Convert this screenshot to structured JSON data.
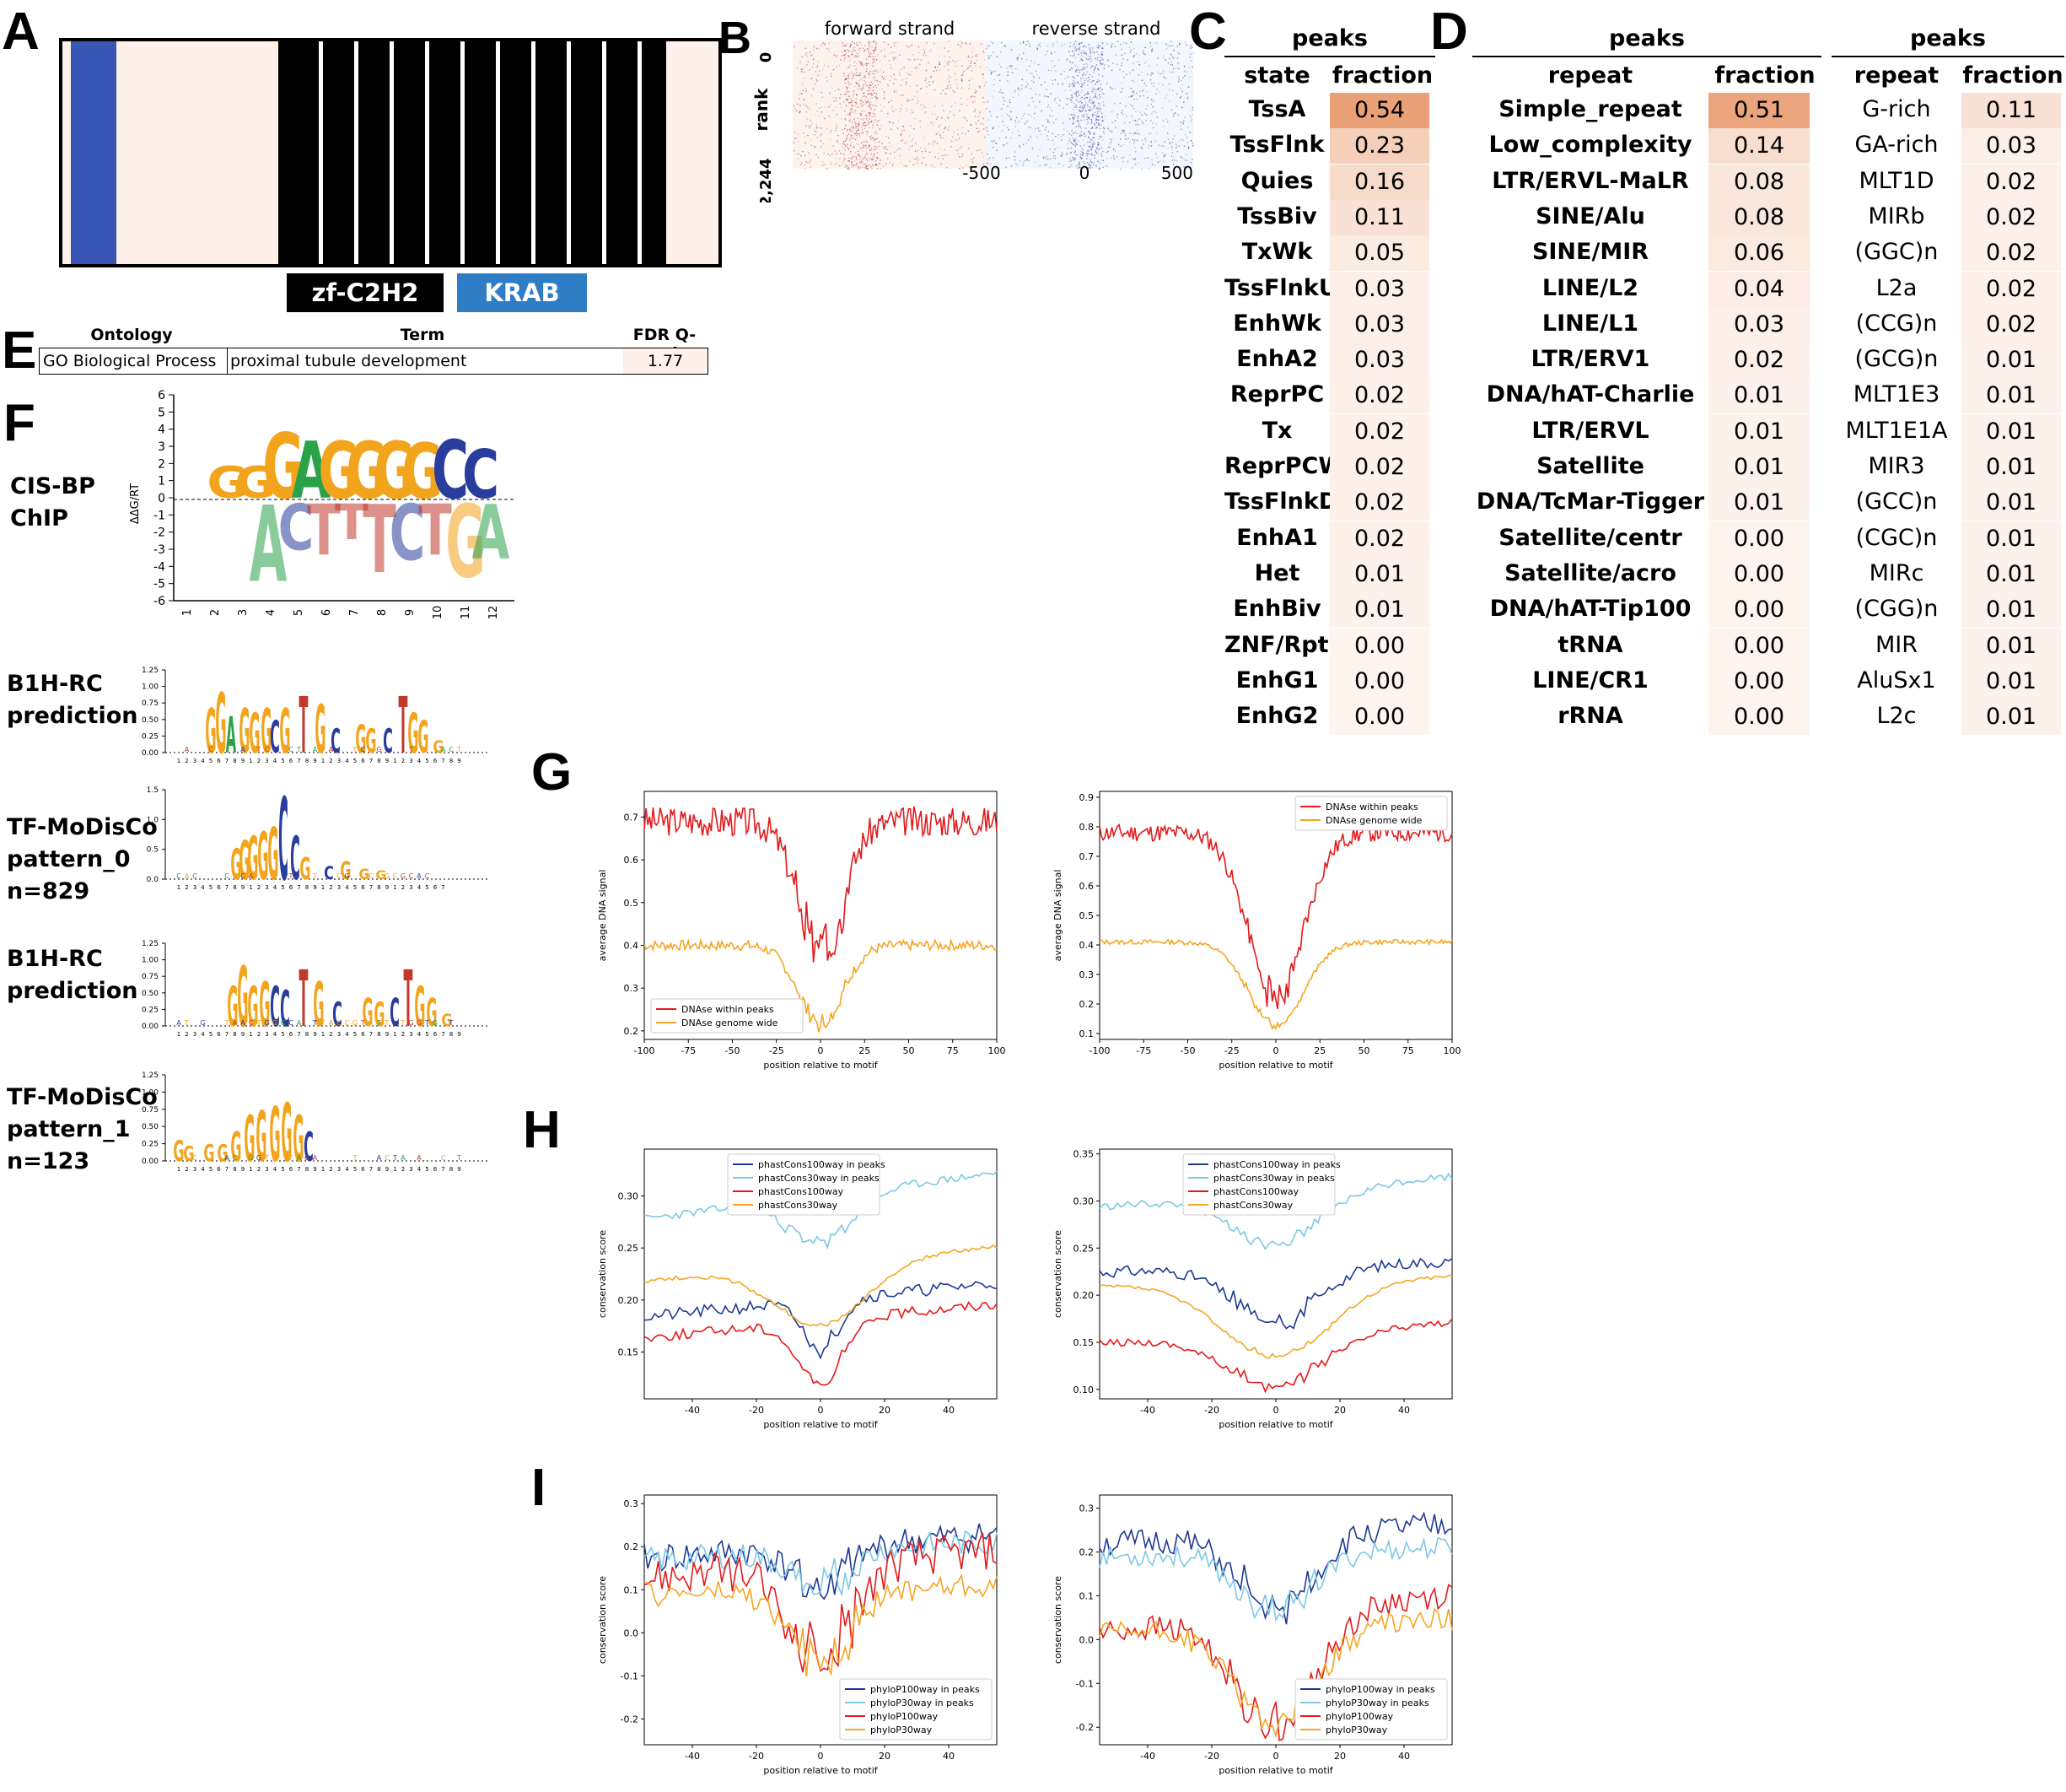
{
  "panels": {
    "A": "A",
    "B": "B",
    "C": "C",
    "D": "D",
    "E": "E",
    "F": "F",
    "G": "G",
    "H": "H",
    "I": "I"
  },
  "panelA": {
    "domains": [
      {
        "label": "zf-C2H2",
        "bg": "#000000",
        "fg": "#ffffff"
      },
      {
        "label": "KRAB",
        "bg": "#2f7dc4",
        "fg": "#ffffff"
      }
    ],
    "colors": {
      "krab": "#3a56b4",
      "background": "#fdf1ea",
      "znf": "#000000"
    }
  },
  "panelB": {
    "forward_label": "forward strand",
    "reverse_label": "reverse strand",
    "y_axis_label": "rank",
    "y_ticks": [
      "0",
      "2,244"
    ],
    "x_ticks": [
      "-500",
      "0",
      "500"
    ]
  },
  "panelC": {
    "header": "peaks",
    "col1": "state",
    "col2": "fraction",
    "rows": [
      {
        "name": "TssA",
        "value": "0.54",
        "v": 0.54
      },
      {
        "name": "TssFlnk",
        "value": "0.23",
        "v": 0.23
      },
      {
        "name": "Quies",
        "value": "0.16",
        "v": 0.16
      },
      {
        "name": "TssBiv",
        "value": "0.11",
        "v": 0.11
      },
      {
        "name": "TxWk",
        "value": "0.05",
        "v": 0.05
      },
      {
        "name": "TssFlnkU",
        "value": "0.03",
        "v": 0.03
      },
      {
        "name": "EnhWk",
        "value": "0.03",
        "v": 0.03
      },
      {
        "name": "EnhA2",
        "value": "0.03",
        "v": 0.03
      },
      {
        "name": "ReprPC",
        "value": "0.02",
        "v": 0.02
      },
      {
        "name": "Tx",
        "value": "0.02",
        "v": 0.02
      },
      {
        "name": "ReprPCWk",
        "value": "0.02",
        "v": 0.02
      },
      {
        "name": "TssFlnkD",
        "value": "0.02",
        "v": 0.02
      },
      {
        "name": "EnhA1",
        "value": "0.02",
        "v": 0.02
      },
      {
        "name": "Het",
        "value": "0.01",
        "v": 0.01
      },
      {
        "name": "EnhBiv",
        "value": "0.01",
        "v": 0.01
      },
      {
        "name": "ZNF/Rpts",
        "value": "0.00",
        "v": 0.0
      },
      {
        "name": "EnhG1",
        "value": "0.00",
        "v": 0.0
      },
      {
        "name": "EnhG2",
        "value": "0.00",
        "v": 0.0
      }
    ]
  },
  "panelD1": {
    "header": "peaks",
    "col1": "repeat",
    "col2": "fraction",
    "rows": [
      {
        "name": "Simple_repeat",
        "value": "0.51",
        "v": 0.51
      },
      {
        "name": "Low_complexity",
        "value": "0.14",
        "v": 0.14
      },
      {
        "name": "LTR/ERVL-MaLR",
        "value": "0.08",
        "v": 0.08
      },
      {
        "name": "SINE/Alu",
        "value": "0.08",
        "v": 0.08
      },
      {
        "name": "SINE/MIR",
        "value": "0.06",
        "v": 0.06
      },
      {
        "name": "LINE/L2",
        "value": "0.04",
        "v": 0.04
      },
      {
        "name": "LINE/L1",
        "value": "0.03",
        "v": 0.03
      },
      {
        "name": "LTR/ERV1",
        "value": "0.02",
        "v": 0.02
      },
      {
        "name": "DNA/hAT-Charlie",
        "value": "0.01",
        "v": 0.01
      },
      {
        "name": "LTR/ERVL",
        "value": "0.01",
        "v": 0.01
      },
      {
        "name": "Satellite",
        "value": "0.01",
        "v": 0.01
      },
      {
        "name": "DNA/TcMar-Tigger",
        "value": "0.01",
        "v": 0.01
      },
      {
        "name": "Satellite/centr",
        "value": "0.00",
        "v": 0.0
      },
      {
        "name": "Satellite/acro",
        "value": "0.00",
        "v": 0.0
      },
      {
        "name": "DNA/hAT-Tip100",
        "value": "0.00",
        "v": 0.0
      },
      {
        "name": "tRNA",
        "value": "0.00",
        "v": 0.0
      },
      {
        "name": "LINE/CR1",
        "value": "0.00",
        "v": 0.0
      },
      {
        "name": "rRNA",
        "value": "0.00",
        "v": 0.0
      }
    ]
  },
  "panelD2": {
    "header": "peaks",
    "col1": "repeat",
    "col2": "fraction",
    "rows": [
      {
        "name": "G-rich",
        "value": "0.11",
        "v": 0.11
      },
      {
        "name": "GA-rich",
        "value": "0.03",
        "v": 0.03
      },
      {
        "name": "MLT1D",
        "value": "0.02",
        "v": 0.02
      },
      {
        "name": "MIRb",
        "value": "0.02",
        "v": 0.02
      },
      {
        "name": "(GGC)n",
        "value": "0.02",
        "v": 0.02
      },
      {
        "name": "L2a",
        "value": "0.02",
        "v": 0.02
      },
      {
        "name": "(CCG)n",
        "value": "0.02",
        "v": 0.02
      },
      {
        "name": "(GCG)n",
        "value": "0.01",
        "v": 0.01
      },
      {
        "name": "MLT1E3",
        "value": "0.01",
        "v": 0.01
      },
      {
        "name": "MLT1E1A",
        "value": "0.01",
        "v": 0.01
      },
      {
        "name": "MIR3",
        "value": "0.01",
        "v": 0.01
      },
      {
        "name": "(GCC)n",
        "value": "0.01",
        "v": 0.01
      },
      {
        "name": "(CGC)n",
        "value": "0.01",
        "v": 0.01
      },
      {
        "name": "MIRc",
        "value": "0.01",
        "v": 0.01
      },
      {
        "name": "(CGG)n",
        "value": "0.01",
        "v": 0.01
      },
      {
        "name": "MIR",
        "value": "0.01",
        "v": 0.01
      },
      {
        "name": "AluSx1",
        "value": "0.01",
        "v": 0.01
      },
      {
        "name": "L2c",
        "value": "0.01",
        "v": 0.01
      }
    ]
  },
  "panelE": {
    "headers": [
      "Ontology",
      "Term",
      "FDR Q-val"
    ],
    "row": [
      "GO Biological Process",
      "proximal tubule development",
      "1.77"
    ]
  },
  "panelF": {
    "logos": [
      {
        "label1": "CIS-BP",
        "label2": "ChIP",
        "label3": ""
      },
      {
        "label1": "B1H-RC",
        "label2": "prediction",
        "label3": ""
      },
      {
        "label1": "TF-MoDisCo",
        "label2": "pattern_0",
        "label3": "n=829"
      },
      {
        "label1": "B1H-RC",
        "label2": "prediction",
        "label3": ""
      },
      {
        "label1": "TF-MoDisCo",
        "label2": "pattern_1",
        "label3": "n=123"
      }
    ],
    "energy_axis_label": "ΔΔG/RT",
    "energy_ticks": [
      "6",
      "5",
      "4",
      "3",
      "2",
      "1",
      "0",
      "-1",
      "-2",
      "-3",
      "-4",
      "-5",
      "-6"
    ],
    "energy_positions": [
      "1",
      "2",
      "3",
      "4",
      "5",
      "6",
      "7",
      "8",
      "9",
      "10",
      "11",
      "12"
    ],
    "energy_top": [
      "G",
      "G",
      "G",
      "A",
      "G",
      "G",
      "G",
      "G",
      "C",
      "C"
    ],
    "energy_bottom": [
      "A",
      "C",
      "T",
      "T",
      "T",
      "C",
      "T",
      "G",
      "A"
    ],
    "small_ticks_a": [
      "1.25",
      "1.00",
      "0.75",
      "0.50",
      "0.25",
      "0.00"
    ],
    "small_ticks_b": [
      "1.5",
      "1.0",
      "0.5",
      "0.0"
    ]
  },
  "chart_data": [
    {
      "type": "line",
      "id": "G-left",
      "xlabel": "position relative to motif",
      "ylabel": "average DNA signal",
      "xlim": [
        -100,
        100
      ],
      "ylim": [
        0.18,
        0.76
      ],
      "xticks": [
        "-100",
        "-75",
        "-50",
        "-25",
        "0",
        "25",
        "50",
        "75",
        "100"
      ],
      "yticks": [
        "0.2",
        "0.3",
        "0.4",
        "0.5",
        "0.6",
        "0.7"
      ],
      "legend_position": "lower-left",
      "series": [
        {
          "name": "DNAse within peaks",
          "color": "#e41a1c",
          "base": 0.69,
          "dip": 0.3,
          "dipw": 18,
          "noise": 0.035,
          "seed": 3,
          "pts": 201
        },
        {
          "name": "DNAse genome wide",
          "color": "#f5a623",
          "base": 0.4,
          "dip": 0.18,
          "dipw": 18,
          "noise": 0.012,
          "seed": 7,
          "pts": 201
        }
      ]
    },
    {
      "type": "line",
      "id": "G-right",
      "xlabel": "position relative to motif",
      "ylabel": "average DNA signal",
      "xlim": [
        -100,
        100
      ],
      "ylim": [
        0.08,
        0.92
      ],
      "xticks": [
        "-100",
        "-75",
        "-50",
        "-25",
        "0",
        "25",
        "50",
        "75",
        "100"
      ],
      "yticks": [
        "0.1",
        "0.2",
        "0.3",
        "0.4",
        "0.5",
        "0.6",
        "0.7",
        "0.8",
        "0.9"
      ],
      "legend_position": "upper-right",
      "series": [
        {
          "name": "DNAse within peaks",
          "color": "#e41a1c",
          "base": 0.78,
          "dip": 0.56,
          "dipw": 22,
          "noise": 0.03,
          "seed": 11,
          "pts": 201
        },
        {
          "name": "DNAse genome wide",
          "color": "#f5a623",
          "base": 0.41,
          "dip": 0.28,
          "dipw": 22,
          "noise": 0.008,
          "seed": 13,
          "pts": 201
        }
      ]
    },
    {
      "type": "line",
      "id": "H-left",
      "xlabel": "position relative to motif",
      "ylabel": "conservation score",
      "xlim": [
        -55,
        55
      ],
      "ylim": [
        0.105,
        0.345
      ],
      "xticks": [
        "-40",
        "-20",
        "0",
        "20",
        "40"
      ],
      "yticks": [
        "0.15",
        "0.20",
        "0.25",
        "0.30"
      ],
      "legend_position": "upper-center",
      "series": [
        {
          "name": "phastCons100way in peaks",
          "color": "#1f3a93",
          "base": 0.2,
          "dip": 0.045,
          "dipw": 8,
          "noise": 0.006,
          "seed": 21,
          "pts": 101,
          "slope": 0.0003
        },
        {
          "name": "phastCons30way in peaks",
          "color": "#7ec8e3",
          "base": 0.3,
          "dip": 0.045,
          "dipw": 14,
          "noise": 0.004,
          "seed": 23,
          "pts": 101,
          "slope": 0.0004
        },
        {
          "name": "phastCons100way",
          "color": "#e41a1c",
          "base": 0.18,
          "dip": 0.06,
          "dipw": 10,
          "noise": 0.005,
          "seed": 25,
          "pts": 101,
          "slope": 0.0003
        },
        {
          "name": "phastCons30way",
          "color": "#f5a623",
          "base": 0.235,
          "dip": 0.06,
          "dipw": 20,
          "noise": 0.002,
          "seed": 27,
          "pts": 101,
          "slope": 0.0003
        }
      ]
    },
    {
      "type": "line",
      "id": "H-right",
      "xlabel": "position relative to motif",
      "ylabel": "conservation score",
      "xlim": [
        -55,
        55
      ],
      "ylim": [
        0.09,
        0.355
      ],
      "xticks": [
        "-40",
        "-20",
        "0",
        "20",
        "40"
      ],
      "yticks": [
        "0.10",
        "0.15",
        "0.20",
        "0.25",
        "0.30",
        "0.35"
      ],
      "legend_position": "upper-center",
      "series": [
        {
          "name": "phastCons100way in peaks",
          "color": "#1f3a93",
          "base": 0.23,
          "dip": 0.06,
          "dipw": 18,
          "noise": 0.006,
          "seed": 31,
          "pts": 101,
          "slope": 0.0001
        },
        {
          "name": "phastCons30way in peaks",
          "color": "#7ec8e3",
          "base": 0.31,
          "dip": 0.055,
          "dipw": 20,
          "noise": 0.004,
          "seed": 33,
          "pts": 101,
          "slope": 0.0003
        },
        {
          "name": "phastCons100way",
          "color": "#e41a1c",
          "base": 0.16,
          "dip": 0.055,
          "dipw": 22,
          "noise": 0.004,
          "seed": 35,
          "pts": 101,
          "slope": 0.0002
        },
        {
          "name": "phastCons30way",
          "color": "#f5a623",
          "base": 0.215,
          "dip": 0.08,
          "dipw": 24,
          "noise": 0.002,
          "seed": 37,
          "pts": 101,
          "slope": 0.0001
        }
      ]
    },
    {
      "type": "line",
      "id": "I-left",
      "xlabel": "position relative to motif",
      "ylabel": "conservation score",
      "xlim": [
        -55,
        55
      ],
      "ylim": [
        -0.26,
        0.32
      ],
      "xticks": [
        "-40",
        "-20",
        "0",
        "20",
        "40"
      ],
      "yticks": [
        "-0.2",
        "-0.1",
        "0.0",
        "0.1",
        "0.2",
        "0.3"
      ],
      "legend_position": "lower-right",
      "series": [
        {
          "name": "phyloP100way in peaks",
          "color": "#1f3a93",
          "base": 0.2,
          "dip": 0.1,
          "dipw": 12,
          "noise": 0.035,
          "seed": 41,
          "pts": 101,
          "slope": 0.0005
        },
        {
          "name": "phyloP30way in peaks",
          "color": "#7ec8e3",
          "base": 0.19,
          "dip": 0.09,
          "dipw": 12,
          "noise": 0.03,
          "seed": 43,
          "pts": 101,
          "slope": 0.0004
        },
        {
          "name": "phyloP100way",
          "color": "#e41a1c",
          "base": 0.16,
          "dip": 0.22,
          "dipw": 14,
          "noise": 0.045,
          "seed": 45,
          "pts": 101,
          "slope": 0.0006
        },
        {
          "name": "phyloP30way",
          "color": "#f5a623",
          "base": 0.1,
          "dip": 0.16,
          "dipw": 14,
          "noise": 0.03,
          "seed": 47,
          "pts": 101,
          "slope": 0.0002
        }
      ]
    },
    {
      "type": "line",
      "id": "I-right",
      "xlabel": "position relative to motif",
      "ylabel": "conservation score",
      "xlim": [
        -55,
        55
      ],
      "ylim": [
        -0.24,
        0.33
      ],
      "xticks": [
        "-40",
        "-20",
        "0",
        "20",
        "40"
      ],
      "yticks": [
        "-0.2",
        "-0.1",
        "0.0",
        "0.1",
        "0.2",
        "0.3"
      ],
      "legend_position": "lower-right",
      "series": [
        {
          "name": "phyloP100way in peaks",
          "color": "#1f3a93",
          "base": 0.24,
          "dip": 0.18,
          "dipw": 16,
          "noise": 0.03,
          "seed": 51,
          "pts": 101,
          "slope": 0.0004
        },
        {
          "name": "phyloP30way in peaks",
          "color": "#7ec8e3",
          "base": 0.2,
          "dip": 0.14,
          "dipw": 16,
          "noise": 0.025,
          "seed": 53,
          "pts": 101,
          "slope": 0.0002
        },
        {
          "name": "phyloP100way",
          "color": "#e41a1c",
          "base": 0.06,
          "dip": 0.25,
          "dipw": 18,
          "noise": 0.03,
          "seed": 55,
          "pts": 101,
          "slope": 0.0008
        },
        {
          "name": "phyloP30way",
          "color": "#f5a623",
          "base": 0.03,
          "dip": 0.22,
          "dipw": 18,
          "noise": 0.025,
          "seed": 57,
          "pts": 101,
          "slope": 0.0003
        }
      ]
    }
  ]
}
